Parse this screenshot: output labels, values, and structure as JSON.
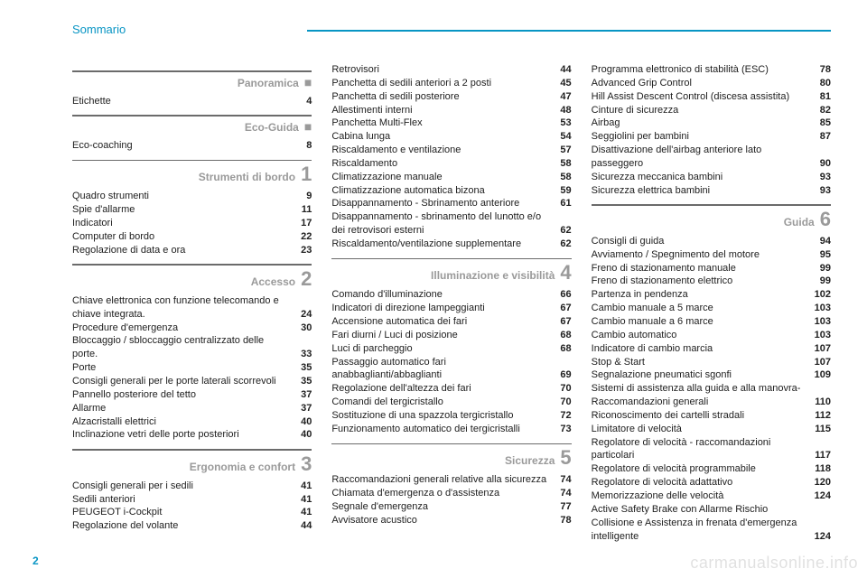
{
  "header": {
    "title": "Sommario"
  },
  "page_number": "2",
  "watermark": "carmanualsonline.info",
  "colors": {
    "accent": "#0895c4",
    "section_grey": "#9a9a9a",
    "text": "#202020",
    "rule_grey": "#6b6b6b"
  },
  "columns": [
    {
      "sections": [
        {
          "label": "Panoramica",
          "marker_type": "square",
          "entries": [
            {
              "label": "Etichette",
              "page": "4"
            }
          ]
        },
        {
          "label": "Eco-Guida",
          "marker_type": "square",
          "entries": [
            {
              "label": "Eco-coaching",
              "page": "8"
            }
          ]
        },
        {
          "label": "Strumenti di bordo",
          "marker_type": "number",
          "marker": "1",
          "entries": [
            {
              "label": "Quadro strumenti",
              "page": "9"
            },
            {
              "label": "Spie d'allarme",
              "page": "11"
            },
            {
              "label": "Indicatori",
              "page": "17"
            },
            {
              "label": "Computer di bordo",
              "page": "22"
            },
            {
              "label": "Regolazione di data e ora",
              "page": "23"
            }
          ]
        },
        {
          "label": "Accesso",
          "marker_type": "number",
          "marker": "2",
          "entries": [
            {
              "label": "Chiave elettronica con funzione telecomando e chiave integrata.",
              "page": "24"
            },
            {
              "label": "Procedure d'emergenza",
              "page": "30"
            },
            {
              "label": "Bloccaggio / sbloccaggio centralizzato delle porte.",
              "page": "33"
            },
            {
              "label": "Porte",
              "page": "35"
            },
            {
              "label": "Consigli generali per le porte laterali scorrevoli",
              "page": "35"
            },
            {
              "label": "Pannello posteriore del tetto",
              "page": "37"
            },
            {
              "label": "Allarme",
              "page": "37"
            },
            {
              "label": "Alzacristalli elettrici",
              "page": "40"
            },
            {
              "label": "Inclinazione vetri delle porte posteriori",
              "page": "40"
            }
          ]
        },
        {
          "label": "Ergonomia e confort",
          "marker_type": "number",
          "marker": "3",
          "entries": [
            {
              "label": "Consigli generali per i sedili",
              "page": "41"
            },
            {
              "label": "Sedili anteriori",
              "page": "41"
            },
            {
              "label": "PEUGEOT i-Cockpit",
              "page": "41"
            },
            {
              "label": "Regolazione del volante",
              "page": "44"
            }
          ]
        }
      ]
    },
    {
      "sections": [
        {
          "entries": [
            {
              "label": "Retrovisori",
              "page": "44"
            },
            {
              "label": "Panchetta di sedili anteriori a 2 posti",
              "page": "45"
            },
            {
              "label": "Panchetta di sedili posteriore",
              "page": "47"
            },
            {
              "label": "Allestimenti interni",
              "page": "48"
            },
            {
              "label": "Panchetta Multi-Flex",
              "page": "53"
            },
            {
              "label": "Cabina lunga",
              "page": "54"
            },
            {
              "label": "Riscaldamento e ventilazione",
              "page": "57"
            },
            {
              "label": "Riscaldamento",
              "page": "58"
            },
            {
              "label": "Climatizzazione manuale",
              "page": "58"
            },
            {
              "label": "Climatizzazione automatica bizona",
              "page": "59"
            },
            {
              "label": "Disappannamento - Sbrinamento anteriore",
              "page": "61"
            },
            {
              "label": "Disappannamento - sbrinamento del lunotto e/o dei retrovisori esterni",
              "page": "62"
            },
            {
              "label": "Riscaldamento/ventilazione supplementare",
              "page": "62"
            }
          ]
        },
        {
          "label": "Illuminazione e visibilità",
          "marker_type": "number",
          "marker": "4",
          "entries": [
            {
              "label": "Comando d'illuminazione",
              "page": "66"
            },
            {
              "label": "Indicatori di direzione lampeggianti",
              "page": "67"
            },
            {
              "label": "Accensione automatica dei fari",
              "page": "67"
            },
            {
              "label": "Fari diurni / Luci di posizione",
              "page": "68"
            },
            {
              "label": "Luci di parcheggio",
              "page": "68"
            },
            {
              "label": "Passaggio automatico fari anabbaglianti/abbaglianti",
              "page": "69"
            },
            {
              "label": "Regolazione dell'altezza dei fari",
              "page": "70"
            },
            {
              "label": "Comandi del tergicristallo",
              "page": "70"
            },
            {
              "label": "Sostituzione di una spazzola tergicristallo",
              "page": "72"
            },
            {
              "label": "Funzionamento automatico dei tergicristalli",
              "page": "73"
            }
          ]
        },
        {
          "label": "Sicurezza",
          "marker_type": "number",
          "marker": "5",
          "entries": [
            {
              "label": "Raccomandazioni generali relative alla sicurezza",
              "page": "74"
            },
            {
              "label": "Chiamata d'emergenza o d'assistenza",
              "page": "74"
            },
            {
              "label": "Segnale d'emergenza",
              "page": "77"
            },
            {
              "label": "Avvisatore acustico",
              "page": "78"
            }
          ]
        }
      ]
    },
    {
      "sections": [
        {
          "entries": [
            {
              "label": "Programma elettronico di stabilità (ESC)",
              "page": "78"
            },
            {
              "label": "Advanced Grip Control",
              "page": "80"
            },
            {
              "label": "Hill Assist Descent Control (discesa assistita)",
              "page": "81"
            },
            {
              "label": "Cinture di sicurezza",
              "page": "82"
            },
            {
              "label": "Airbag",
              "page": "85"
            },
            {
              "label": "Seggiolini per bambini",
              "page": "87"
            },
            {
              "label": "Disattivazione dell'airbag anteriore lato passeggero",
              "page": "90"
            },
            {
              "label": "Sicurezza meccanica bambini",
              "page": "93"
            },
            {
              "label": "Sicurezza elettrica bambini",
              "page": "93"
            }
          ]
        },
        {
          "label": "Guida",
          "marker_type": "number",
          "marker": "6",
          "entries": [
            {
              "label": "Consigli di guida",
              "page": "94"
            },
            {
              "label": "Avviamento / Spegnimento del motore",
              "page": "95"
            },
            {
              "label": "Freno di stazionamento manuale",
              "page": "99"
            },
            {
              "label": "Freno di stazionamento elettrico",
              "page": "99"
            },
            {
              "label": "Partenza in pendenza",
              "page": "102"
            },
            {
              "label": "Cambio manuale a 5 marce",
              "page": "103"
            },
            {
              "label": "Cambio manuale a 6 marce",
              "page": "103"
            },
            {
              "label": "Cambio automatico",
              "page": "103"
            },
            {
              "label": "Indicatore di cambio marcia",
              "page": "107"
            },
            {
              "label": "Stop & Start",
              "page": "107"
            },
            {
              "label": "Segnalazione pneumatici sgonfi",
              "page": "109"
            },
            {
              "label": "Sistemi di assistenza alla guida e alla manovra- Raccomandazioni generali",
              "page": "110"
            },
            {
              "label": "Riconoscimento dei cartelli stradali",
              "page": "112"
            },
            {
              "label": "Limitatore di velocità",
              "page": "115"
            },
            {
              "label": "Regolatore di velocità - raccomandazioni particolari",
              "page": "117"
            },
            {
              "label": "Regolatore di velocità programmabile",
              "page": "118"
            },
            {
              "label": "Regolatore di velocità adattativo",
              "page": "120"
            },
            {
              "label": "Memorizzazione delle velocità",
              "page": "124"
            },
            {
              "label": "Active Safety Brake con Allarme Rischio Collisione e Assistenza in frenata d'emergenza intelligente",
              "page": "124"
            }
          ]
        }
      ]
    }
  ]
}
